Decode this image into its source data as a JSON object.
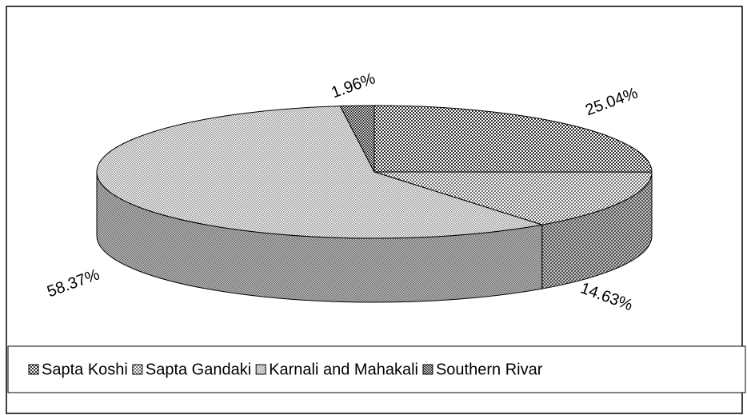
{
  "chart_data": {
    "type": "pie3d",
    "categories": [
      "Sapta Koshi",
      "Sapta Gandaki",
      "Karnali and Mahakali",
      "Southern Rivar"
    ],
    "values": [
      25.04,
      14.63,
      58.37,
      1.96
    ],
    "value_labels": [
      "25.04%",
      "14.63%",
      "58.37%",
      "1.96%"
    ],
    "colors": [
      "#303030",
      "#707070",
      "#909090",
      "#000000"
    ],
    "legend": "bottom"
  }
}
